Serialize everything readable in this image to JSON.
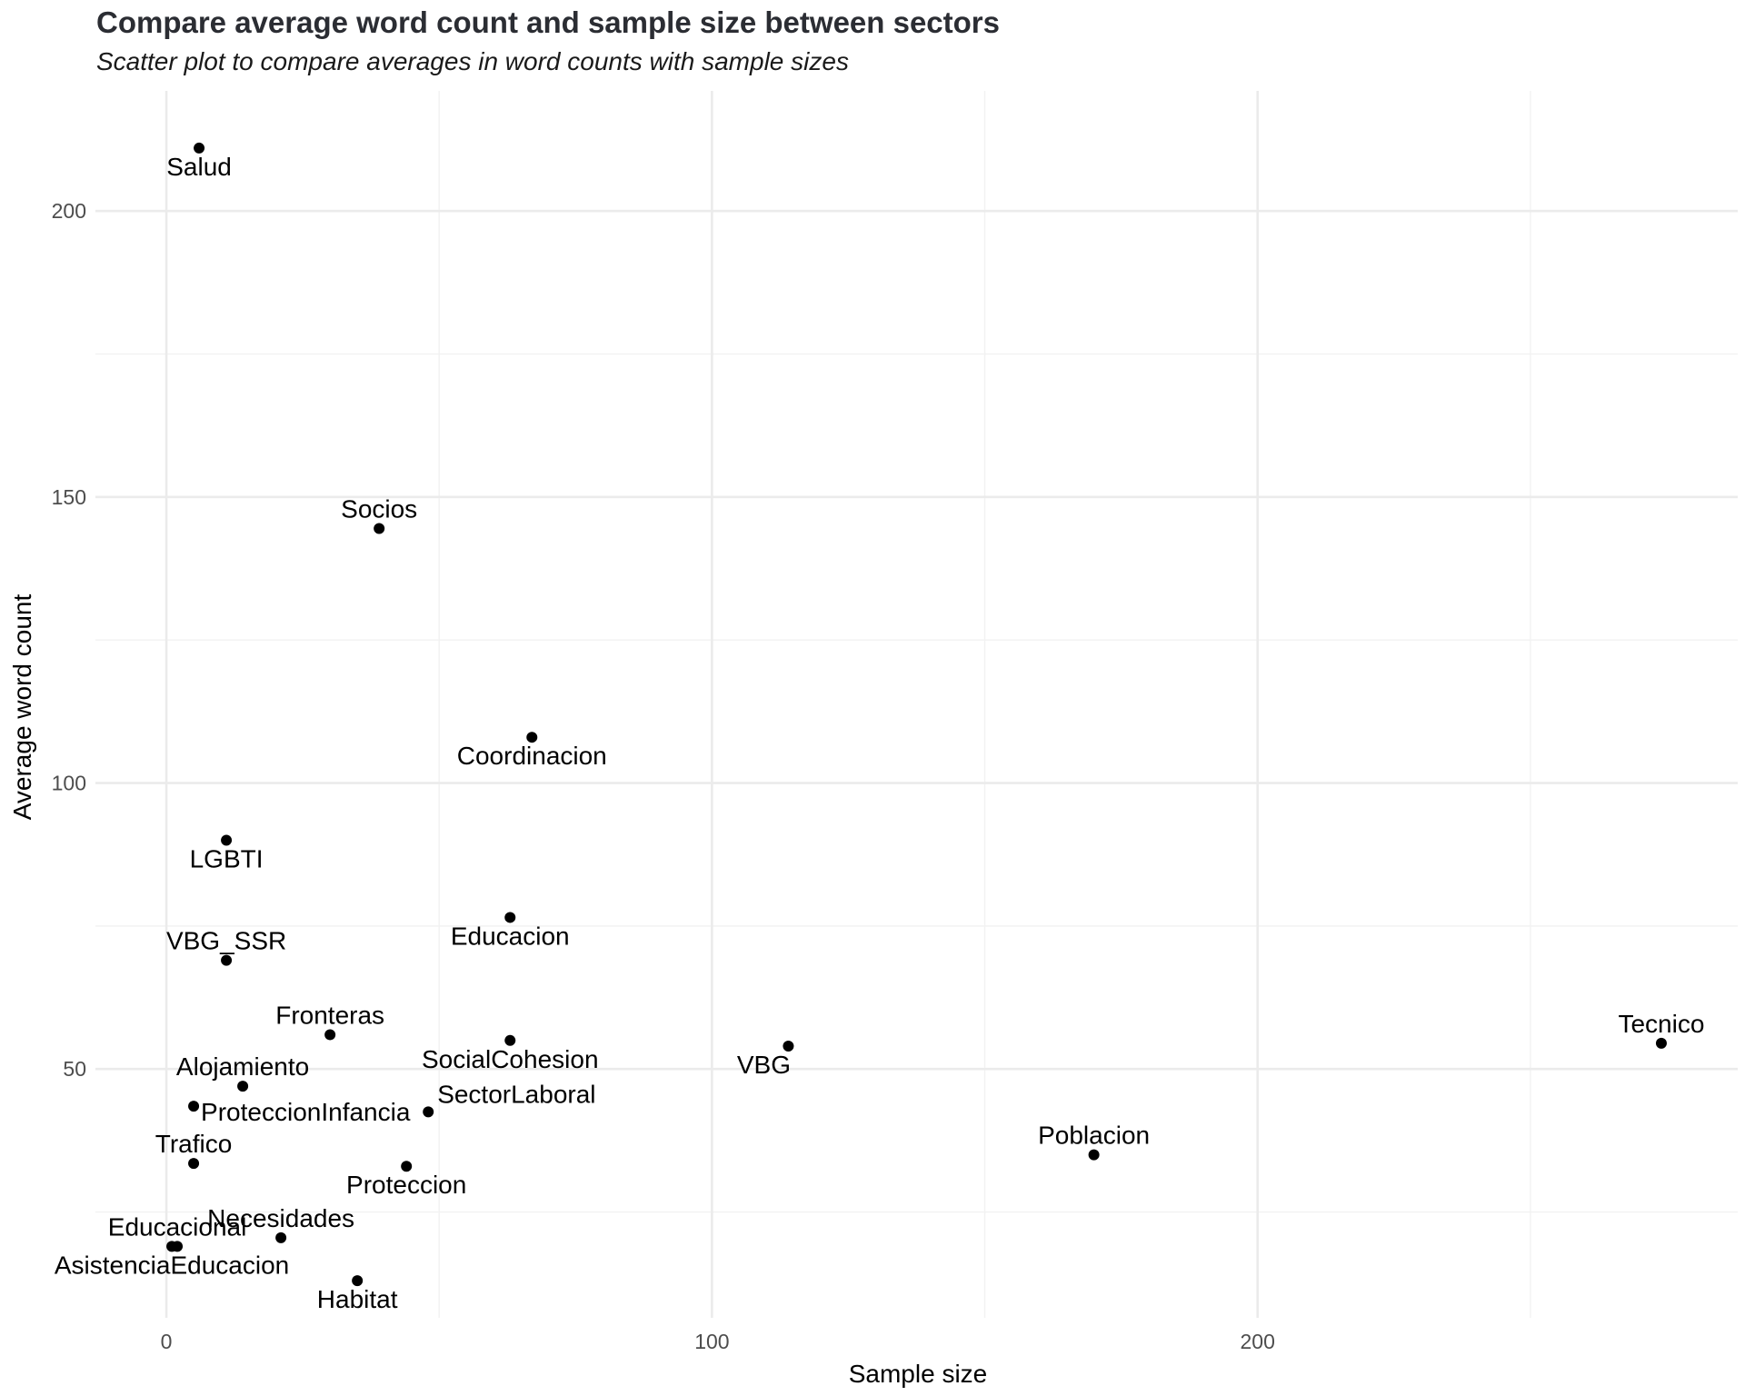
{
  "chart_data": {
    "type": "scatter",
    "title": "Compare average word count and sample size between sectors",
    "subtitle": "Scatter plot to compare averages in word counts with sample sizes",
    "xlabel": "Sample size",
    "ylabel": "Average word count",
    "xlim": [
      -13,
      288
    ],
    "ylim": [
      6.5,
      221
    ],
    "x_ticks": [
      0,
      100,
      200
    ],
    "y_ticks": [
      50,
      100,
      150,
      200
    ],
    "grid": true,
    "point_color": "#000000",
    "points": [
      {
        "label": "Salud",
        "x": 6,
        "y": 211,
        "label_pos": "below"
      },
      {
        "label": "Socios",
        "x": 39,
        "y": 144.5,
        "label_pos": "above"
      },
      {
        "label": "Coordinacion",
        "x": 67,
        "y": 108,
        "label_pos": "below"
      },
      {
        "label": "LGBTI",
        "x": 11,
        "y": 90,
        "label_pos": "below"
      },
      {
        "label": "Educacion",
        "x": 63,
        "y": 76.5,
        "label_pos": "below"
      },
      {
        "label": "VBG_SSR",
        "x": 11,
        "y": 69,
        "label_pos": "above"
      },
      {
        "label": "Fronteras",
        "x": 30,
        "y": 56,
        "label_pos": "above"
      },
      {
        "label": "SocialCohesion",
        "x": 63,
        "y": 55,
        "label_pos": "below"
      },
      {
        "label": "VBG",
        "x": 114,
        "y": 54,
        "label_pos": "below-left"
      },
      {
        "label": "Tecnico",
        "x": 274,
        "y": 54.5,
        "label_pos": "above"
      },
      {
        "label": "Alojamiento",
        "x": 14,
        "y": 47,
        "label_pos": "above"
      },
      {
        "label": "ProteccionInfancia",
        "x": 5,
        "y": 43.5,
        "label_pos": "right"
      },
      {
        "label": "SectorLaboral",
        "x": 48,
        "y": 42.5,
        "label_pos": "above-right"
      },
      {
        "label": "Poblacion",
        "x": 170,
        "y": 35,
        "label_pos": "above"
      },
      {
        "label": "Trafico",
        "x": 5,
        "y": 33.5,
        "label_pos": "above"
      },
      {
        "label": "Proteccion",
        "x": 44,
        "y": 33,
        "label_pos": "below"
      },
      {
        "label": "Necesidades",
        "x": 21,
        "y": 20.5,
        "label_pos": "above"
      },
      {
        "label": "Educacional",
        "x": 2,
        "y": 19,
        "label_pos": "above"
      },
      {
        "label": "AsistenciaEducacion",
        "x": 1,
        "y": 19,
        "label_pos": "below"
      },
      {
        "label": "Habitat",
        "x": 35,
        "y": 13,
        "label_pos": "below"
      }
    ]
  }
}
